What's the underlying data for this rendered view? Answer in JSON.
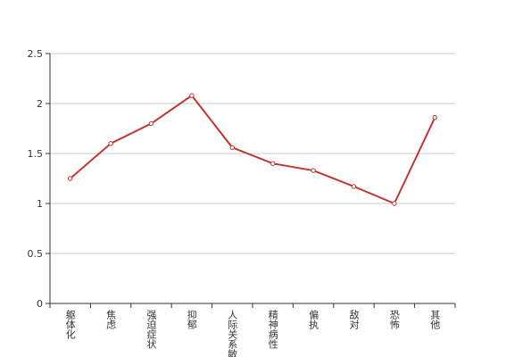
{
  "chart_data": {
    "type": "line",
    "categories": [
      "躯体化",
      "焦虑",
      "强迫症状",
      "抑郁",
      "人际关系敏感",
      "精神病性",
      "偏执",
      "敌对",
      "恐怖",
      "其他"
    ],
    "values": [
      1.25,
      1.6,
      1.8,
      2.08,
      1.56,
      1.4,
      1.33,
      1.17,
      1.0,
      1.86
    ],
    "color": "#c23531",
    "ylim": [
      0,
      2.5
    ],
    "yticks": [
      0,
      0.5,
      1,
      1.5,
      2,
      2.5
    ],
    "grid": true
  }
}
